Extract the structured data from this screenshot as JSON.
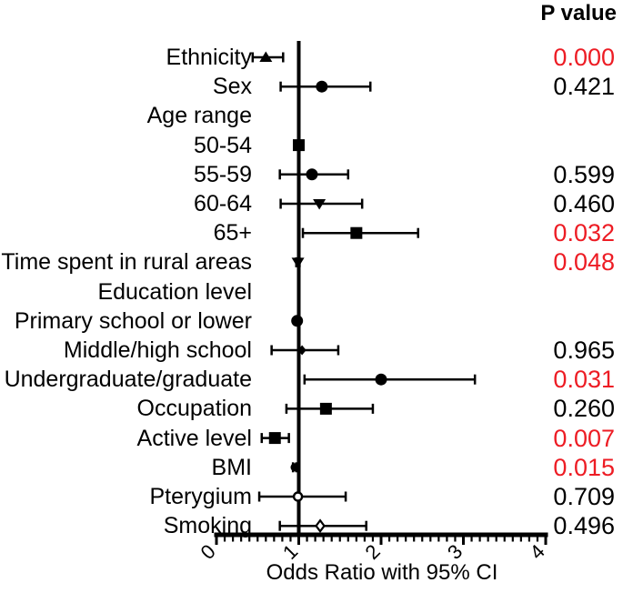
{
  "figure": {
    "p_value_header": "P value",
    "colors": {
      "significant_red": "#ed1c24",
      "default_black": "#000000",
      "background": "#ffffff"
    }
  },
  "chart_data": {
    "type": "forest",
    "xlabel": "Odds Ratio with 95% CI",
    "xlim": [
      0,
      4
    ],
    "x_ticks": [
      0,
      1,
      2,
      3,
      4
    ],
    "x_tick_labels": [
      "0",
      "1",
      "2",
      "3",
      "4"
    ],
    "minor_tick_step": 0.1,
    "reference_line": 1,
    "legend": "none",
    "rows": [
      {
        "label": "Ethnicity",
        "marker": "triangle-up",
        "or": 0.6,
        "ci": [
          0.44,
          0.81
        ],
        "p": "0.000",
        "significant": true
      },
      {
        "label": "Sex",
        "marker": "circle",
        "or": 1.28,
        "ci": [
          0.78,
          1.87
        ],
        "p": "0.421",
        "significant": false
      },
      {
        "label": "Age range",
        "marker": null,
        "or": null,
        "ci": null,
        "p": null,
        "significant": false
      },
      {
        "label": "50-54",
        "marker": "square",
        "or": 1.0,
        "ci": [
          1.0,
          1.0
        ],
        "p": null,
        "significant": false
      },
      {
        "label": "55-59",
        "marker": "circle",
        "or": 1.16,
        "ci": [
          0.77,
          1.6
        ],
        "p": "0.599",
        "significant": false
      },
      {
        "label": "60-64",
        "marker": "triangle-down",
        "or": 1.25,
        "ci": [
          0.78,
          1.77
        ],
        "p": "0.460",
        "significant": false
      },
      {
        "label": "65+",
        "marker": "square",
        "or": 1.7,
        "ci": [
          1.05,
          2.45
        ],
        "p": "0.032",
        "significant": true
      },
      {
        "label": "Time spent in rural areas",
        "marker": "triangle-down",
        "or": 0.99,
        "ci": [
          0.97,
          1.01
        ],
        "p": "0.048",
        "significant": true
      },
      {
        "label": "Education level",
        "marker": null,
        "or": null,
        "ci": null,
        "p": null,
        "significant": false
      },
      {
        "label": "Primary school or lower",
        "marker": "circle",
        "or": 0.98,
        "ci": [
          0.97,
          1.0
        ],
        "p": null,
        "significant": false
      },
      {
        "label": "Middle/high school",
        "marker": "diamond-small",
        "or": 1.04,
        "ci": [
          0.67,
          1.48
        ],
        "p": "0.965",
        "significant": false
      },
      {
        "label": "Undergraduate/graduate",
        "marker": "circle",
        "or": 2.0,
        "ci": [
          1.07,
          3.14
        ],
        "p": "0.031",
        "significant": true
      },
      {
        "label": "Occupation",
        "marker": "square",
        "or": 1.33,
        "ci": [
          0.85,
          1.9
        ],
        "p": "0.260",
        "significant": false
      },
      {
        "label": "Active level",
        "marker": "square",
        "or": 0.71,
        "ci": [
          0.55,
          0.88
        ],
        "p": "0.007",
        "significant": true
      },
      {
        "label": "BMI",
        "marker": "circle-small",
        "or": 0.95,
        "ci": [
          0.93,
          0.97
        ],
        "p": "0.015",
        "significant": true
      },
      {
        "label": "Pterygium",
        "marker": "circle-open",
        "or": 0.99,
        "ci": [
          0.52,
          1.57
        ],
        "p": "0.709",
        "significant": false
      },
      {
        "label": "Smoking",
        "marker": "diamond-open",
        "or": 1.26,
        "ci": [
          0.77,
          1.82
        ],
        "p": "0.496",
        "significant": false
      }
    ]
  }
}
